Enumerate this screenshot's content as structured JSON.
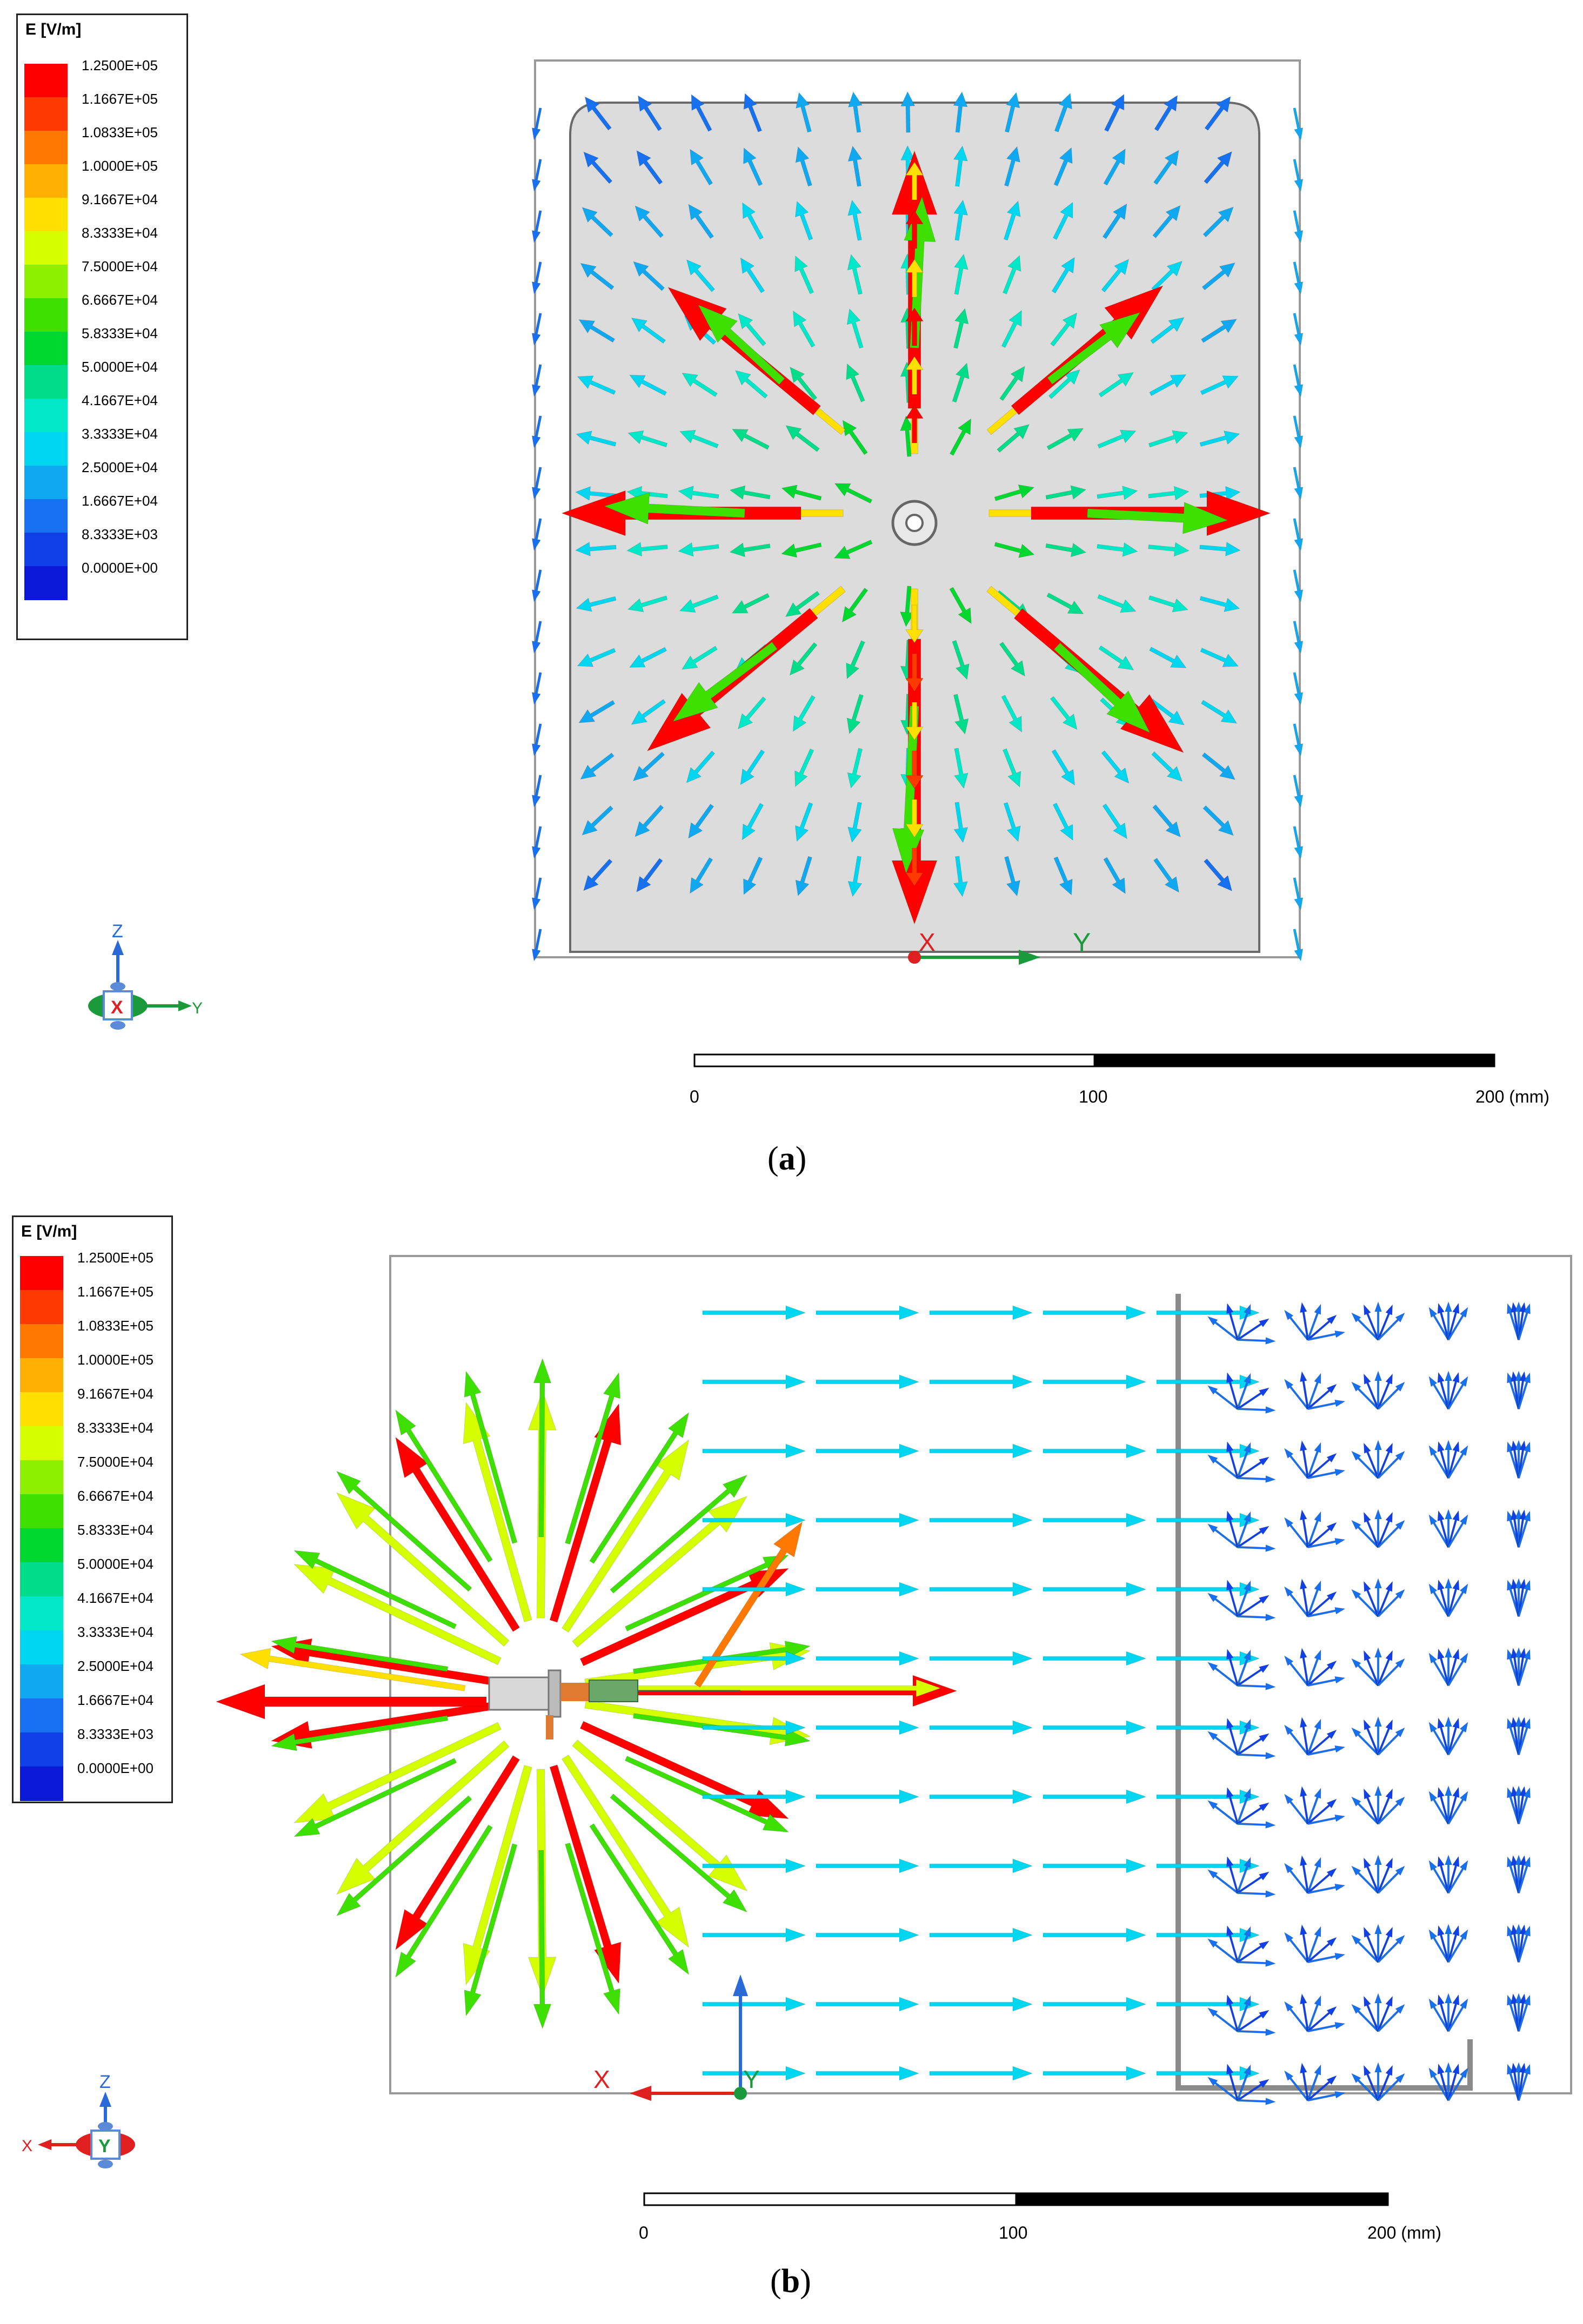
{
  "panels": [
    {
      "id": "a",
      "caption_open": "(",
      "caption_letter": "a",
      "caption_close": ")",
      "legend": {
        "title": "E [V/m]",
        "ticks": [
          "1.2500E+05",
          "1.1667E+05",
          "1.0833E+05",
          "1.0000E+05",
          "9.1667E+04",
          "8.3333E+04",
          "7.5000E+04",
          "6.6667E+04",
          "5.8333E+04",
          "5.0000E+04",
          "4.1667E+04",
          "3.3333E+04",
          "2.5000E+04",
          "1.6667E+04",
          "8.3333E+03",
          "0.0000E+00"
        ]
      },
      "axes_triad": {
        "up": "Z",
        "center": "X",
        "right": "Y"
      },
      "model_axes": {
        "origin_label": "X",
        "axis_label": "Y"
      },
      "scalebar": {
        "labels": [
          "0",
          "100",
          "200 (mm)"
        ]
      }
    },
    {
      "id": "b",
      "caption_open": "(",
      "caption_letter": "b",
      "caption_close": ")",
      "legend": {
        "title": "E [V/m]",
        "ticks": [
          "1.2500E+05",
          "1.1667E+05",
          "1.0833E+05",
          "1.0000E+05",
          "9.1667E+04",
          "8.3333E+04",
          "7.5000E+04",
          "6.6667E+04",
          "5.8333E+04",
          "5.0000E+04",
          "4.1667E+04",
          "3.3333E+04",
          "2.5000E+04",
          "1.6667E+04",
          "8.3333E+03",
          "0.0000E+00"
        ]
      },
      "axes_triad": {
        "up": "Z",
        "center": "Y",
        "left": "X"
      },
      "model_axes": {
        "origin_label": "Y",
        "axis_label": "X"
      },
      "scalebar": {
        "labels": [
          "0",
          "100",
          "200 (mm)"
        ]
      }
    }
  ],
  "colors": {
    "scale": [
      "#ff0000",
      "#ff3a00",
      "#ff7800",
      "#ffb000",
      "#ffe000",
      "#d6ff00",
      "#8cf000",
      "#3de000",
      "#00d830",
      "#00dd8a",
      "#00e8c8",
      "#00d6f0",
      "#10a8f0",
      "#1670f0",
      "#1040e8",
      "#0a18d8"
    ],
    "plate": "#dcdcdc",
    "frame": "#9a9a9a",
    "axis_y": "#1a9a3a",
    "axis_x": "#e02020",
    "axis_z": "#2a6ad8"
  }
}
